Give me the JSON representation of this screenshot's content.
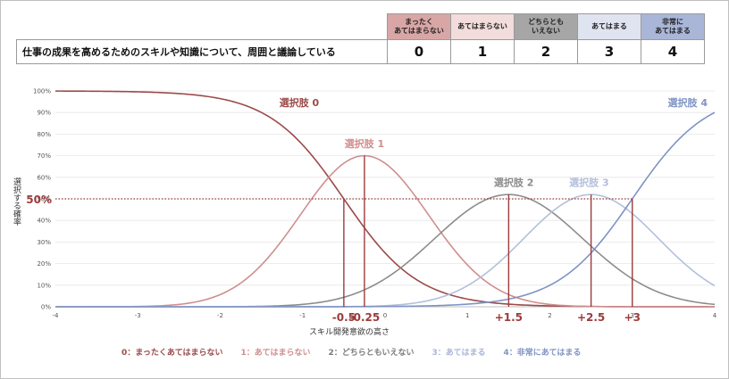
{
  "item_table": {
    "question": "仕事の成果を高めるためのスキルや知識について、周囲と議論している",
    "options": [
      {
        "label_line1": "まったく",
        "label_line2": "あてはまらない",
        "value": "0",
        "color": "#d9a6a6"
      },
      {
        "label_line1": "",
        "label_line2": "あてはまらない",
        "value": "1",
        "color": "#f2dcdc"
      },
      {
        "label_line1": "どちらとも",
        "label_line2": "いえない",
        "value": "2",
        "color": "#a6a6a6"
      },
      {
        "label_line1": "",
        "label_line2": "あてはまる",
        "value": "3",
        "color": "#e0e4f0"
      },
      {
        "label_line1": "非常に",
        "label_line2": "あてはまる",
        "value": "4",
        "color": "#a9b6d8"
      }
    ]
  },
  "chart_data": {
    "type": "line",
    "xlabel": "スキル開発意欲の高さ",
    "ylabel": "選択する確率",
    "xlim": [
      -4,
      4
    ],
    "ylim": [
      0,
      1
    ],
    "x_ticks": [
      "-4",
      "-3",
      "-2",
      "-1",
      "0",
      "1",
      "2",
      "3",
      "4"
    ],
    "y_ticks": [
      "0%",
      "10%",
      "20%",
      "30%",
      "40%",
      "50%",
      "60%",
      "70%",
      "80%",
      "90%",
      "100%"
    ],
    "highlight_y": {
      "value": 0.5,
      "label": "50%"
    },
    "thresholds": [
      {
        "x": -0.5,
        "label": "-0.5"
      },
      {
        "x": -0.25,
        "label": "-0.25"
      },
      {
        "x": 1.5,
        "label": "+1.5"
      },
      {
        "x": 2.5,
        "label": "+2.5"
      },
      {
        "x": 3,
        "label": "+3"
      }
    ],
    "series": [
      {
        "name": "選択肢 0",
        "color": "#9c4a4a",
        "shape": "decreasing",
        "center": -0.5,
        "x": [
          -4,
          -2,
          -1,
          -0.5,
          0,
          1,
          2,
          4
        ],
        "y": [
          1.0,
          0.96,
          0.8,
          0.5,
          0.3,
          0.07,
          0.01,
          0.0
        ]
      },
      {
        "name": "選択肢 1",
        "color": "#d08e8e",
        "shape": "peak",
        "center": -0.25,
        "peak": 0.7,
        "x": [
          -4,
          -2,
          -1,
          -0.25,
          0.5,
          1.5,
          4
        ],
        "y": [
          0.0,
          0.07,
          0.35,
          0.7,
          0.5,
          0.15,
          0.0
        ]
      },
      {
        "name": "選択肢 2",
        "color": "#8c8c8c",
        "shape": "peak",
        "center": 1.5,
        "peak": 0.52,
        "x": [
          -4,
          -1,
          0.5,
          1.5,
          2.5,
          4
        ],
        "y": [
          0.0,
          0.02,
          0.3,
          0.52,
          0.3,
          0.01
        ]
      },
      {
        "name": "選択肢 3",
        "color": "#b3bfdb",
        "shape": "peak",
        "center": 2.5,
        "peak": 0.52,
        "x": [
          -4,
          0,
          1.5,
          2.5,
          3.5,
          4
        ],
        "y": [
          0.0,
          0.01,
          0.3,
          0.52,
          0.3,
          0.08
        ]
      },
      {
        "name": "選択肢 4",
        "color": "#7f93c4",
        "shape": "increasing",
        "center": 3,
        "x": [
          -4,
          1,
          2,
          3,
          3.5,
          4
        ],
        "y": [
          0.0,
          0.01,
          0.1,
          0.5,
          0.75,
          0.91
        ]
      }
    ],
    "legend": {
      "placement": "bottom",
      "entries": [
        {
          "text": "0：まったくあてはまらない",
          "color": "#9c4a4a"
        },
        {
          "text": "1：あてはまらない",
          "color": "#d08e8e"
        },
        {
          "text": "2：どちらともいえない",
          "color": "#7a7a7a"
        },
        {
          "text": "3：あてはまる",
          "color": "#a9b6d8"
        },
        {
          "text": "4：非常にあてはまる",
          "color": "#7f93c4"
        }
      ]
    }
  }
}
